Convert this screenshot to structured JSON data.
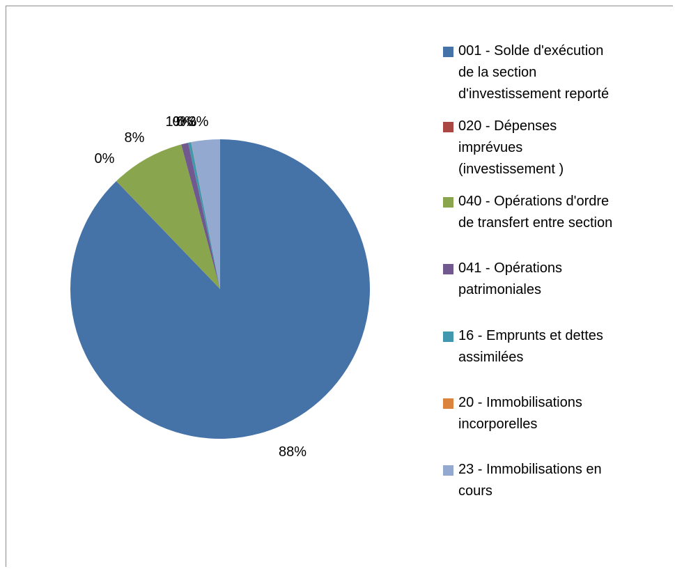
{
  "chart_data": {
    "type": "pie",
    "title": "",
    "start_angle": "12 o'clock, clockwise",
    "slices": [
      {
        "label": "001 - Solde d'exécution de la section d'investissement reporté",
        "value": 88,
        "display": "88%",
        "color": "#4572A7"
      },
      {
        "label": "020 - Dépenses imprévues (investissement )",
        "value": 0,
        "display": "0%",
        "color": "#AA4643"
      },
      {
        "label": "040 - Opérations d'ordre de transfert entre section",
        "value": 8,
        "display": "8%",
        "color": "#89A54E"
      },
      {
        "label": "041 - Opérations patrimoniales",
        "value": 1,
        "display": "1%",
        "color": "#71588F"
      },
      {
        "label": "16 - Emprunts et dettes assimilées",
        "value": 0,
        "display": "0%",
        "color": "#4198AF"
      },
      {
        "label": "20 - Immobilisations incorporelles",
        "value": 0,
        "display": "0%",
        "color": "#DB843D"
      },
      {
        "label": "23 - Immobilisations en cours",
        "value": 3,
        "display": "3%",
        "color": "#93A9CF"
      }
    ],
    "legend_position": "right"
  },
  "legend": {
    "items": [
      {
        "lines": [
          "001 - Solde d'exécution",
          "de la section",
          "d'investissement reporté"
        ],
        "color": "#4572A7"
      },
      {
        "lines": [
          "020 - Dépenses",
          "imprévues",
          "(investissement )"
        ],
        "color": "#AA4643"
      },
      {
        "lines": [
          "040 - Opérations d'ordre",
          "de transfert entre section"
        ],
        "color": "#89A54E"
      },
      {
        "lines": [
          "041 - Opérations",
          "patrimoniales"
        ],
        "color": "#71588F"
      },
      {
        "lines": [
          "16 - Emprunts et dettes",
          "assimilées"
        ],
        "color": "#4198AF"
      },
      {
        "lines": [
          "20 - Immobilisations",
          "incorporelles"
        ],
        "color": "#DB843D"
      },
      {
        "lines": [
          "23 - Immobilisations en",
          "cours"
        ],
        "color": "#93A9CF"
      }
    ]
  }
}
